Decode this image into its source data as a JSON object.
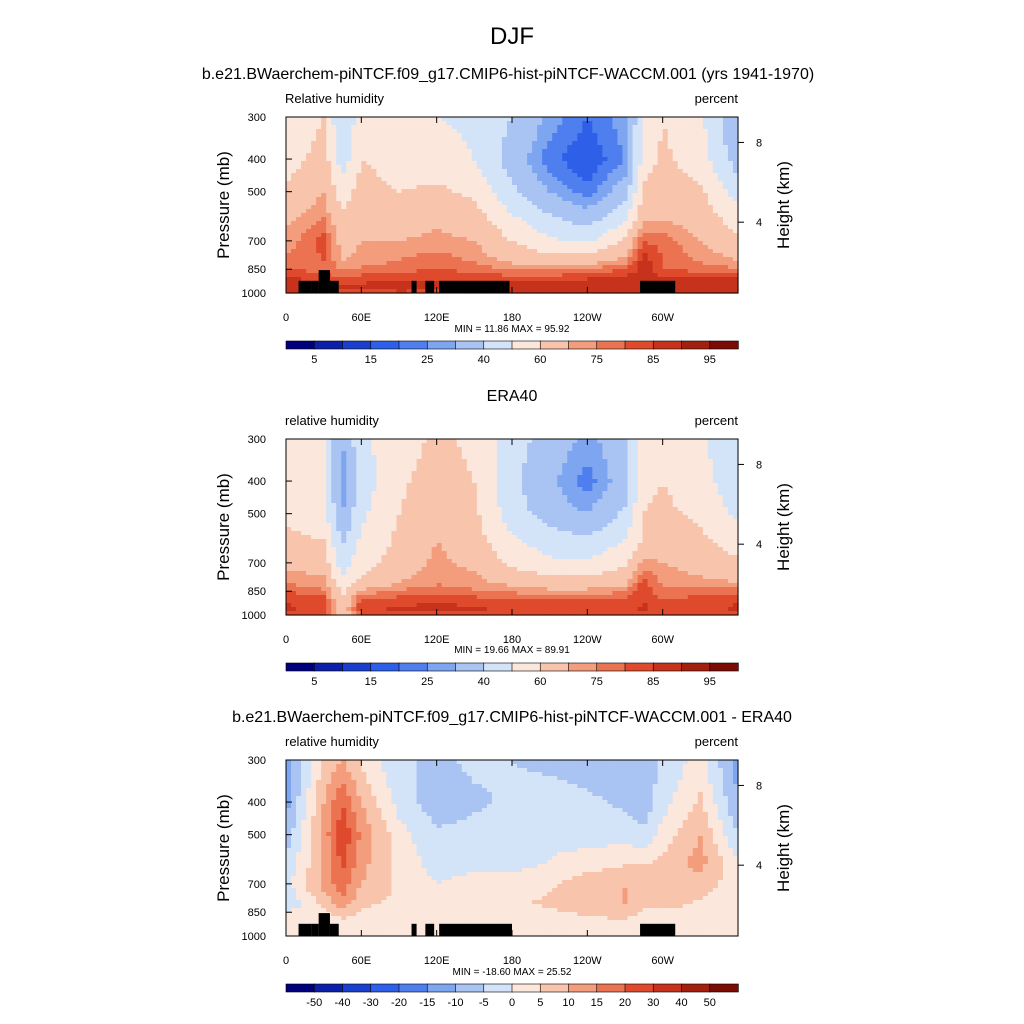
{
  "figure": {
    "title": "DJF"
  },
  "x_ticks": [
    "0",
    "60E",
    "120E",
    "180",
    "120W",
    "60W"
  ],
  "y_ticks": [
    "300",
    "400",
    "500",
    "700",
    "850",
    "1000"
  ],
  "height_ticks": [
    "8",
    "4"
  ],
  "left_axis_label": "Pressure (mb)",
  "right_axis_label": "Height (km)",
  "chart_data": [
    {
      "type": "heatmap",
      "panel": "model",
      "title": "b.e21.BWaerchem-piNTCF.f09_g17.CMIP6-hist-piNTCF-WACCM.001 (yrs 1941-1970)",
      "left_label": "Relative humidity",
      "right_label": "percent",
      "xlabel": "",
      "ylabel": "Pressure (mb)",
      "y2label": "Height (km)",
      "xlim": [
        0,
        360
      ],
      "ylim": [
        1000,
        300
      ],
      "min_max": "MIN =  11.86  MAX =  95.92",
      "colorbar_ticks": [
        "5",
        "15",
        "25",
        "40",
        "60",
        "75",
        "85",
        "95"
      ],
      "levels": [
        5,
        10,
        15,
        20,
        25,
        30,
        40,
        50,
        60,
        70,
        75,
        80,
        85,
        90,
        95
      ],
      "colors": [
        "#00007f",
        "#0d1fa8",
        "#1a3fcc",
        "#2e5fe8",
        "#4f7fef",
        "#7ea6f0",
        "#a9c3f3",
        "#d3e3f8",
        "#fbe7dc",
        "#f8c4ab",
        "#f39d7c",
        "#ec7352",
        "#e04a2c",
        "#c6321c",
        "#a3200f",
        "#7a0b05"
      ],
      "y": [
        300,
        400,
        500,
        600,
        700,
        800,
        850,
        900,
        950,
        1000
      ],
      "x": [
        0,
        30,
        45,
        60,
        90,
        120,
        150,
        180,
        210,
        240,
        270,
        285,
        300,
        330,
        360
      ],
      "values": [
        [
          50,
          60,
          40,
          55,
          50,
          50,
          48,
          40,
          28,
          20,
          28,
          50,
          60,
          52,
          30
        ],
        [
          55,
          65,
          45,
          60,
          55,
          55,
          50,
          35,
          22,
          15,
          25,
          55,
          62,
          55,
          35
        ],
        [
          62,
          70,
          55,
          65,
          60,
          62,
          58,
          42,
          30,
          22,
          35,
          62,
          66,
          62,
          45
        ],
        [
          68,
          75,
          62,
          68,
          66,
          68,
          65,
          52,
          42,
          35,
          48,
          68,
          70,
          66,
          55
        ],
        [
          72,
          82,
          66,
          70,
          70,
          72,
          70,
          60,
          52,
          48,
          62,
          80,
          78,
          70,
          62
        ],
        [
          76,
          80,
          70,
          72,
          75,
          78,
          74,
          68,
          65,
          66,
          72,
          88,
          80,
          74,
          70
        ],
        [
          80,
          78,
          74,
          76,
          78,
          80,
          78,
          74,
          74,
          76,
          80,
          88,
          80,
          78,
          76
        ],
        [
          86,
          82,
          80,
          82,
          84,
          84,
          84,
          82,
          82,
          84,
          86,
          88,
          86,
          84,
          84
        ],
        [
          90,
          88,
          86,
          86,
          88,
          86,
          88,
          88,
          88,
          90,
          90,
          90,
          90,
          90,
          90
        ],
        [
          86,
          84,
          82,
          82,
          84,
          84,
          84,
          84,
          84,
          86,
          86,
          86,
          86,
          86,
          86
        ]
      ],
      "topography": [
        {
          "x": [
            10,
            20
          ],
          "p": 920
        },
        {
          "x": [
            20,
            26
          ],
          "p": 920
        },
        {
          "x": [
            26,
            35
          ],
          "p": 855
        },
        {
          "x": [
            35,
            42
          ],
          "p": 920
        },
        {
          "x": [
            100,
            104
          ],
          "p": 920
        },
        {
          "x": [
            111,
            118
          ],
          "p": 920
        },
        {
          "x": [
            122,
            178
          ],
          "p": 920
        },
        {
          "x": [
            282,
            310
          ],
          "p": 920
        }
      ]
    },
    {
      "type": "heatmap",
      "panel": "observations",
      "title": "ERA40",
      "left_label": "relative humidity",
      "right_label": "percent",
      "xlabel": "",
      "ylabel": "Pressure (mb)",
      "y2label": "Height (km)",
      "xlim": [
        0,
        360
      ],
      "ylim": [
        1000,
        300
      ],
      "min_max": "MIN =  19.66  MAX =  89.91",
      "colorbar_ticks": [
        "5",
        "15",
        "25",
        "40",
        "60",
        "75",
        "85",
        "95"
      ],
      "levels": [
        5,
        10,
        15,
        20,
        25,
        30,
        40,
        50,
        60,
        70,
        75,
        80,
        85,
        90,
        95
      ],
      "colors": [
        "#00007f",
        "#0d1fa8",
        "#1a3fcc",
        "#2e5fe8",
        "#4f7fef",
        "#7ea6f0",
        "#a9c3f3",
        "#d3e3f8",
        "#fbe7dc",
        "#f8c4ab",
        "#f39d7c",
        "#ec7352",
        "#e04a2c",
        "#c6321c",
        "#a3200f",
        "#7a0b05"
      ],
      "y": [
        300,
        400,
        500,
        600,
        700,
        800,
        850,
        900,
        950,
        1000
      ],
      "x": [
        0,
        30,
        45,
        60,
        90,
        120,
        150,
        180,
        210,
        240,
        270,
        285,
        300,
        330,
        360
      ],
      "values": [
        [
          52,
          50,
          30,
          48,
          55,
          62,
          58,
          45,
          35,
          28,
          35,
          55,
          58,
          52,
          40
        ],
        [
          55,
          50,
          25,
          45,
          58,
          65,
          60,
          42,
          32,
          22,
          35,
          58,
          60,
          55,
          42
        ],
        [
          58,
          55,
          30,
          48,
          60,
          68,
          62,
          45,
          35,
          30,
          42,
          60,
          62,
          58,
          48
        ],
        [
          62,
          60,
          38,
          52,
          62,
          70,
          64,
          52,
          45,
          42,
          50,
          62,
          66,
          62,
          55
        ],
        [
          68,
          66,
          45,
          56,
          65,
          72,
          68,
          58,
          52,
          52,
          58,
          72,
          70,
          66,
          62
        ],
        [
          74,
          72,
          52,
          62,
          70,
          74,
          72,
          68,
          64,
          64,
          68,
          82,
          74,
          72,
          70
        ],
        [
          80,
          76,
          58,
          72,
          76,
          78,
          76,
          74,
          72,
          72,
          74,
          84,
          76,
          78,
          78
        ],
        [
          84,
          82,
          62,
          80,
          82,
          84,
          82,
          80,
          80,
          80,
          82,
          84,
          80,
          82,
          84
        ],
        [
          86,
          84,
          64,
          84,
          86,
          86,
          86,
          84,
          82,
          84,
          84,
          86,
          84,
          84,
          86
        ],
        [
          84,
          82,
          62,
          82,
          84,
          84,
          84,
          82,
          80,
          82,
          82,
          84,
          82,
          82,
          84
        ]
      ],
      "topography": []
    },
    {
      "type": "heatmap",
      "panel": "difference",
      "title": "b.e21.BWaerchem-piNTCF.f09_g17.CMIP6-hist-piNTCF-WACCM.001 - ERA40",
      "left_label": "relative humidity",
      "right_label": "percent",
      "xlabel": "",
      "ylabel": "Pressure (mb)",
      "y2label": "Height (km)",
      "xlim": [
        0,
        360
      ],
      "ylim": [
        1000,
        300
      ],
      "min_max": "MIN = -18.60  MAX =  25.52",
      "colorbar_ticks": [
        "-50",
        "-40",
        "-30",
        "-20",
        "-15",
        "-10",
        "-5",
        "0",
        "5",
        "10",
        "15",
        "20",
        "30",
        "40",
        "50"
      ],
      "levels": [
        -50,
        -40,
        -30,
        -20,
        -15,
        -10,
        -5,
        0,
        5,
        10,
        15,
        20,
        30,
        40,
        50
      ],
      "colors": [
        "#00007f",
        "#0d1fa8",
        "#1a3fcc",
        "#2e5fe8",
        "#4f7fef",
        "#7ea6f0",
        "#a9c3f3",
        "#d3e3f8",
        "#fbe7dc",
        "#f8c4ab",
        "#f39d7c",
        "#ec7352",
        "#e04a2c",
        "#c6321c",
        "#a3200f",
        "#7a0b05"
      ],
      "y": [
        300,
        400,
        500,
        600,
        700,
        800,
        850,
        900,
        950,
        1000
      ],
      "x": [
        0,
        30,
        45,
        60,
        90,
        120,
        150,
        180,
        210,
        240,
        270,
        285,
        300,
        330,
        360
      ],
      "values": [
        [
          -14,
          6,
          10,
          4,
          -4,
          -6,
          -4,
          -5,
          -6,
          -7,
          -8,
          -8,
          -4,
          2,
          -12
        ],
        [
          -12,
          10,
          20,
          10,
          -2,
          -8,
          -6,
          -4,
          -3,
          -4,
          -6,
          -8,
          -2,
          6,
          -10
        ],
        [
          -8,
          12,
          24,
          14,
          2,
          -4,
          -3,
          -2,
          -1,
          -2,
          -2,
          -4,
          2,
          10,
          -5
        ],
        [
          -4,
          10,
          22,
          12,
          3,
          -2,
          -2,
          -2,
          0,
          2,
          4,
          4,
          6,
          12,
          0
        ],
        [
          -2,
          12,
          18,
          10,
          4,
          0,
          2,
          2,
          4,
          8,
          10,
          10,
          10,
          8,
          2
        ],
        [
          -4,
          6,
          14,
          6,
          4,
          2,
          4,
          4,
          6,
          8,
          10,
          6,
          8,
          4,
          2
        ],
        [
          0,
          4,
          8,
          4,
          2,
          2,
          2,
          2,
          4,
          6,
          8,
          4,
          4,
          2,
          0
        ],
        [
          2,
          2,
          4,
          2,
          2,
          2,
          2,
          2,
          2,
          4,
          4,
          2,
          2,
          2,
          2
        ],
        [
          2,
          2,
          2,
          2,
          2,
          2,
          2,
          2,
          2,
          2,
          2,
          2,
          2,
          2,
          2
        ],
        [
          2,
          2,
          2,
          2,
          2,
          2,
          2,
          2,
          2,
          2,
          2,
          2,
          2,
          2,
          2
        ]
      ],
      "topography": [
        {
          "x": [
            10,
            20
          ],
          "p": 920
        },
        {
          "x": [
            20,
            26
          ],
          "p": 920
        },
        {
          "x": [
            26,
            35
          ],
          "p": 855
        },
        {
          "x": [
            35,
            42
          ],
          "p": 920
        },
        {
          "x": [
            100,
            104
          ],
          "p": 920
        },
        {
          "x": [
            111,
            118
          ],
          "p": 920
        },
        {
          "x": [
            122,
            180
          ],
          "p": 920
        },
        {
          "x": [
            282,
            310
          ],
          "p": 920
        }
      ]
    }
  ]
}
